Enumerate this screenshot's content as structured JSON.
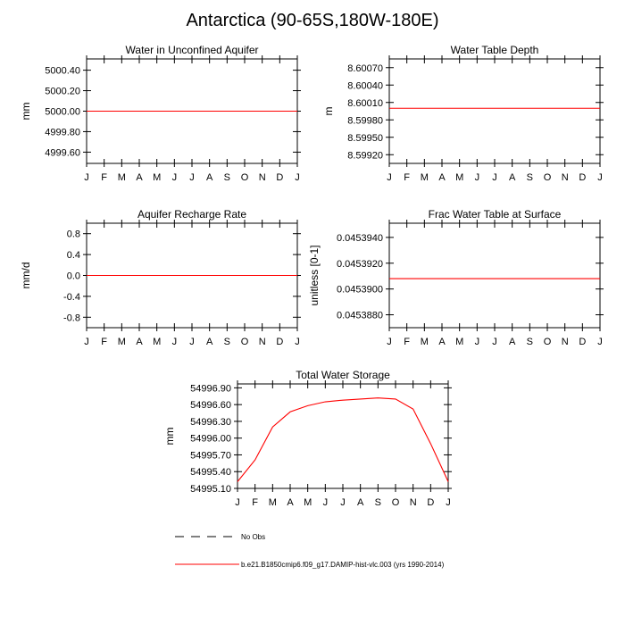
{
  "page": {
    "title": "Antarctica (90-65S,180W-180E)"
  },
  "chart_data": [
    {
      "type": "line",
      "title": "Water in Unconfined Aquifer",
      "xlabel": "",
      "ylabel": "mm",
      "categories": [
        "J",
        "F",
        "M",
        "A",
        "M",
        "J",
        "J",
        "A",
        "S",
        "O",
        "N",
        "D",
        "J"
      ],
      "yticks": [
        "5000.40",
        "5000.20",
        "5000.00",
        "4999.80",
        "4999.60"
      ],
      "ylim": [
        4999.49,
        5000.51
      ],
      "grid": false,
      "series": [
        {
          "values": [
            5000.0,
            5000.0,
            5000.0,
            5000.0,
            5000.0,
            5000.0,
            5000.0,
            5000.0,
            5000.0,
            5000.0,
            5000.0,
            5000.0,
            5000.0
          ],
          "color": "#ff0000"
        }
      ]
    },
    {
      "type": "line",
      "title": "Water Table Depth",
      "xlabel": "",
      "ylabel": "m",
      "categories": [
        "J",
        "F",
        "M",
        "A",
        "M",
        "J",
        "J",
        "A",
        "S",
        "O",
        "N",
        "D",
        "J"
      ],
      "yticks": [
        "8.60070",
        "8.60040",
        "8.60010",
        "8.59980",
        "8.59950",
        "8.59920"
      ],
      "ylim": [
        8.59905,
        8.60085
      ],
      "grid": false,
      "series": [
        {
          "values": [
            8.6,
            8.6,
            8.6,
            8.6,
            8.6,
            8.6,
            8.6,
            8.6,
            8.6,
            8.6,
            8.6,
            8.6,
            8.6
          ],
          "color": "#ff0000"
        }
      ]
    },
    {
      "type": "line",
      "title": "Aquifer Recharge Rate",
      "xlabel": "",
      "ylabel": "mm/d",
      "categories": [
        "J",
        "F",
        "M",
        "A",
        "M",
        "J",
        "J",
        "A",
        "S",
        "O",
        "N",
        "D",
        "J"
      ],
      "yticks": [
        "0.8",
        "0.4",
        "0.0",
        "-0.4",
        "-0.8"
      ],
      "ylim": [
        -1.0,
        1.0
      ],
      "grid": false,
      "series": [
        {
          "values": [
            0,
            0,
            0,
            0,
            0,
            0,
            0,
            0,
            0,
            0,
            0,
            0,
            0
          ],
          "color": "#ff0000"
        }
      ]
    },
    {
      "type": "line",
      "title": "Frac Water Table at Surface",
      "xlabel": "",
      "ylabel": "unitless [0-1]",
      "categories": [
        "J",
        "F",
        "M",
        "A",
        "M",
        "J",
        "J",
        "A",
        "S",
        "O",
        "N",
        "D",
        "J"
      ],
      "yticks": [
        "0.0453940",
        "0.0453920",
        "0.0453900",
        "0.0453880"
      ],
      "ylim": [
        0.045387,
        0.0453951
      ],
      "grid": false,
      "series": [
        {
          "values": [
            0.0453908,
            0.0453908,
            0.0453908,
            0.0453908,
            0.0453908,
            0.0453908,
            0.0453908,
            0.0453908,
            0.0453908,
            0.0453908,
            0.0453908,
            0.0453908,
            0.0453908
          ],
          "color": "#ff0000"
        }
      ]
    },
    {
      "type": "line",
      "title": "Total Water Storage",
      "xlabel": "",
      "ylabel": "mm",
      "categories": [
        "J",
        "F",
        "M",
        "A",
        "M",
        "J",
        "J",
        "A",
        "S",
        "O",
        "N",
        "D",
        "J"
      ],
      "yticks": [
        "54996.90",
        "54996.60",
        "54996.30",
        "54996.00",
        "54995.70",
        "54995.40",
        "54995.10"
      ],
      "ylim": [
        54995.1,
        54996.97
      ],
      "grid": false,
      "series": [
        {
          "values": [
            54995.22,
            54995.61,
            54996.2,
            54996.47,
            54996.58,
            54996.65,
            54996.68,
            54996.7,
            54996.72,
            54996.7,
            54996.52,
            54995.9,
            54995.22
          ],
          "color": "#ff0000"
        }
      ]
    }
  ],
  "legend": {
    "entries": [
      {
        "label": "No Obs",
        "style": "dashed",
        "color": "#000000"
      },
      {
        "label": "b.e21.B1850cmip6.f09_g17.DAMIP-hist-vlc.003 (yrs 1990-2014)",
        "style": "solid",
        "color": "#ff0000"
      }
    ]
  }
}
